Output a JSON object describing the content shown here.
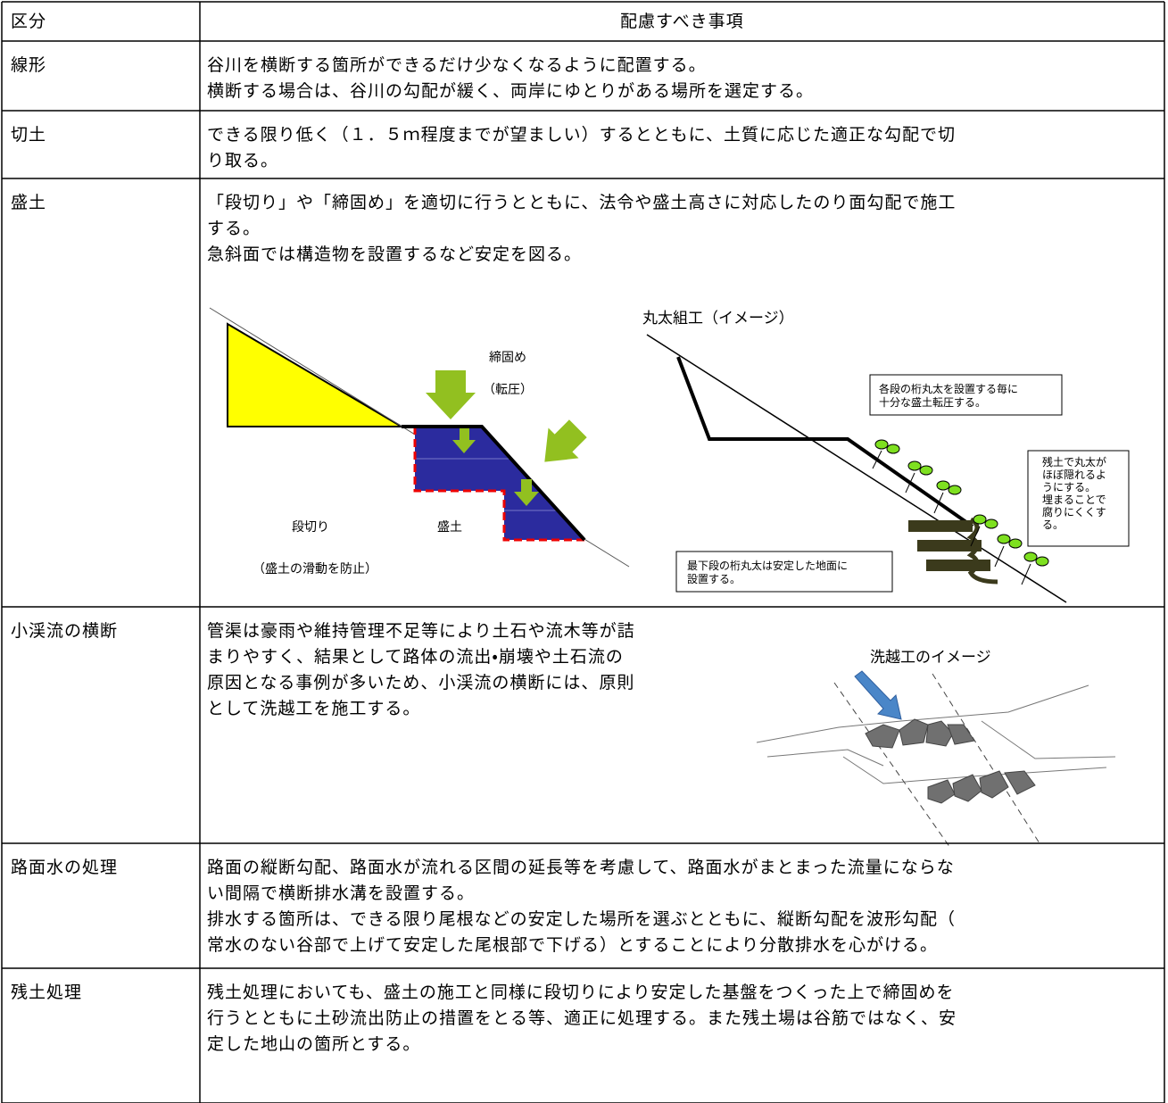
{
  "table": {
    "header": {
      "category": "区分",
      "considerations": "配慮すべき事項"
    },
    "rows": [
      {
        "category": "線形",
        "text": [
          "谷川を横断する箇所ができるだけ少なくなるように配置する。",
          "横断する場合は、谷川の勾配が緩く、両岸にゆとりがある場所を選定する。"
        ]
      },
      {
        "category": "切土",
        "text": [
          "できる限り低く（１．５ｍ程度までが望ましい）するとともに、土質に応じた適正な勾配で切",
          "り取る。"
        ]
      },
      {
        "category": "盛土",
        "text": [
          "「段切り」や「締固め」を適切に行うとともに、法令や盛土高さに対応したのり面勾配で施工",
          "する。",
          "急斜面では構造物を設置するなど安定を図る。"
        ]
      },
      {
        "category": "小渓流の横断",
        "text": [
          "管渠は豪雨や維持管理不足等により土石や流木等が詰",
          "まりやすく、結果として路体の流出・崩壊や土石流の",
          "原因となる事例が多いため、小渓流の横断には、原則",
          "として洗越工を施工する。"
        ]
      },
      {
        "category": "路面水の処理",
        "text": [
          "路面の縦断勾配、路面水が流れる区間の延長等を考慮して、路面水がまとまった流量にならな",
          "い間隔で横断排水溝を設置する。",
          "排水する箇所は、できる限り尾根などの安定した場所を選ぶとともに、縦断勾配を波形勾配（",
          "常水のない谷部で上げて安定した尾根部で下げる）とすることにより分散排水を心がける。"
        ]
      },
      {
        "category": "残土処理",
        "text": [
          "残土処理においても、盛土の施工と同様に段切りにより安定した基盤をつくった上で締固めを",
          "行うとともに土砂流出防止の措置をとる等、適正に処理する。また残土場は谷筋ではなく、安",
          "定した地山の箇所とする。"
        ]
      }
    ]
  },
  "figures": {
    "embankment": {
      "compaction": "締固め",
      "rolling": "（転圧）",
      "bench_cut": "段切り",
      "fill": "盛土",
      "prevent_slide": "（盛土の滑動を防止）"
    },
    "log_crib": {
      "title": "丸太組工（イメージ）",
      "note_compaction": [
        "各段の桁丸太を設置する毎に",
        "十分な盛土転圧する。"
      ],
      "note_cover": [
        "残土で丸太が",
        "ほぼ隠れるよ",
        "うにする。",
        "埋まることで",
        "腐りにくくす",
        "る。"
      ],
      "note_base": [
        "最下段の桁丸太は安定した地面に",
        "設置する。"
      ]
    },
    "ford": {
      "title": "洗越工のイメージ"
    }
  }
}
